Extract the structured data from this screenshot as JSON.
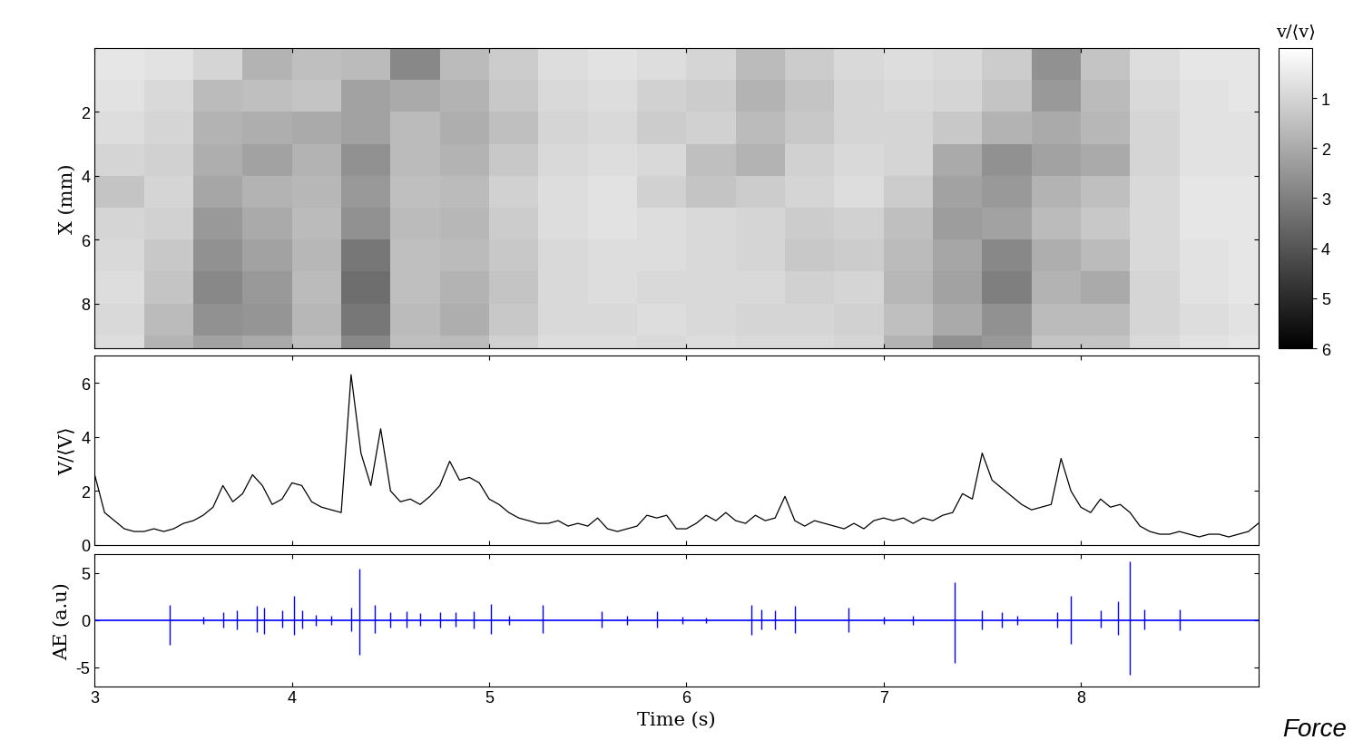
{
  "chart_data": [
    {
      "type": "heatmap",
      "y_label": "X (mm)",
      "x_edges": [
        3.0,
        3.25,
        3.5,
        3.75,
        4.0,
        4.25,
        4.5,
        4.75,
        5.0,
        5.25,
        5.5,
        5.75,
        6.0,
        6.25,
        6.5,
        6.75,
        7.0,
        7.25,
        7.5,
        7.75,
        8.0,
        8.25,
        8.5,
        8.75,
        9.0
      ],
      "y_edges": [
        0,
        1,
        2,
        3,
        4,
        5,
        6,
        7,
        8,
        9,
        9.4
      ],
      "cells": [
        [
          0.6,
          0.7,
          1.0,
          1.8,
          1.5,
          1.6,
          2.8,
          1.6,
          1.2,
          0.8,
          0.7,
          0.8,
          1.0,
          1.6,
          1.2,
          0.9,
          0.8,
          0.9,
          1.2,
          2.6,
          1.4,
          0.8,
          0.6,
          0.6
        ],
        [
          0.7,
          0.9,
          1.6,
          1.5,
          1.4,
          2.2,
          2.0,
          1.8,
          1.3,
          0.9,
          0.8,
          1.1,
          1.2,
          1.8,
          1.4,
          1.0,
          0.9,
          1.0,
          1.4,
          2.4,
          1.6,
          0.9,
          0.7,
          0.6
        ],
        [
          0.8,
          1.0,
          1.8,
          1.9,
          2.0,
          2.2,
          1.6,
          1.9,
          1.5,
          1.0,
          0.9,
          1.2,
          1.1,
          1.6,
          1.3,
          1.0,
          1.0,
          1.3,
          1.8,
          2.0,
          1.7,
          1.0,
          0.7,
          0.7
        ],
        [
          1.0,
          1.1,
          1.9,
          2.2,
          1.8,
          2.6,
          1.6,
          1.8,
          1.3,
          0.9,
          0.8,
          0.9,
          1.5,
          1.8,
          1.1,
          0.9,
          1.0,
          2.0,
          2.6,
          2.2,
          2.0,
          1.0,
          0.7,
          0.7
        ],
        [
          1.4,
          1.0,
          2.1,
          1.8,
          1.7,
          2.4,
          1.5,
          1.6,
          1.1,
          0.8,
          0.7,
          1.1,
          1.4,
          1.2,
          1.0,
          0.8,
          1.2,
          2.2,
          2.4,
          1.8,
          1.5,
          0.9,
          0.6,
          0.6
        ],
        [
          1.0,
          1.1,
          2.4,
          2.0,
          1.6,
          2.6,
          1.6,
          1.7,
          1.2,
          0.8,
          0.7,
          0.8,
          0.9,
          1.0,
          1.2,
          1.1,
          1.5,
          2.3,
          2.2,
          1.6,
          1.3,
          0.9,
          0.6,
          0.6
        ],
        [
          0.9,
          1.3,
          2.6,
          2.2,
          1.7,
          3.2,
          1.5,
          1.6,
          1.3,
          0.9,
          0.8,
          0.8,
          0.9,
          1.0,
          1.3,
          1.2,
          1.6,
          2.1,
          2.8,
          1.9,
          1.6,
          0.9,
          0.7,
          0.6
        ],
        [
          0.8,
          1.4,
          2.8,
          2.4,
          1.6,
          3.4,
          1.5,
          1.8,
          1.4,
          0.9,
          0.8,
          0.9,
          0.9,
          0.9,
          1.1,
          1.0,
          1.7,
          2.2,
          3.0,
          1.8,
          2.0,
          1.0,
          0.7,
          0.6
        ],
        [
          0.9,
          1.6,
          2.6,
          2.5,
          1.7,
          3.2,
          1.6,
          1.9,
          1.3,
          0.9,
          0.9,
          0.8,
          0.9,
          1.0,
          1.0,
          1.1,
          1.5,
          2.0,
          2.6,
          1.6,
          1.6,
          1.0,
          0.8,
          0.7
        ],
        [
          0.8,
          1.8,
          2.2,
          2.0,
          1.5,
          2.8,
          1.5,
          1.6,
          1.1,
          0.8,
          0.8,
          0.9,
          0.8,
          0.9,
          0.9,
          1.0,
          1.8,
          2.6,
          2.4,
          1.4,
          1.4,
          0.9,
          0.7,
          0.6
        ]
      ],
      "colorbar": {
        "label": "v/⟨v⟩",
        "range": [
          0,
          6
        ],
        "ticks": [
          1,
          2,
          3,
          4,
          5,
          6
        ]
      },
      "xlim": [
        3,
        8.9
      ],
      "xticks": [
        3,
        4,
        5,
        6,
        7,
        8
      ],
      "ylim": [
        9.4,
        0
      ],
      "yticks": [
        2,
        4,
        6,
        8
      ],
      "tick_labels": "y"
    },
    {
      "type": "line",
      "y_label": "V/⟨V⟩",
      "color": "#000000",
      "x": [
        3.0,
        3.05,
        3.1,
        3.15,
        3.2,
        3.25,
        3.3,
        3.35,
        3.4,
        3.45,
        3.5,
        3.55,
        3.6,
        3.65,
        3.7,
        3.75,
        3.8,
        3.85,
        3.9,
        3.95,
        4.0,
        4.05,
        4.1,
        4.15,
        4.2,
        4.25,
        4.3,
        4.35,
        4.4,
        4.45,
        4.5,
        4.55,
        4.6,
        4.65,
        4.7,
        4.75,
        4.8,
        4.85,
        4.9,
        4.95,
        5.0,
        5.05,
        5.1,
        5.15,
        5.2,
        5.25,
        5.3,
        5.35,
        5.4,
        5.45,
        5.5,
        5.55,
        5.6,
        5.65,
        5.7,
        5.75,
        5.8,
        5.85,
        5.9,
        5.95,
        6.0,
        6.05,
        6.1,
        6.15,
        6.2,
        6.25,
        6.3,
        6.35,
        6.4,
        6.45,
        6.5,
        6.55,
        6.6,
        6.65,
        6.7,
        6.75,
        6.8,
        6.85,
        6.9,
        6.95,
        7.0,
        7.05,
        7.1,
        7.15,
        7.2,
        7.25,
        7.3,
        7.35,
        7.4,
        7.45,
        7.5,
        7.55,
        7.6,
        7.65,
        7.7,
        7.75,
        7.8,
        7.85,
        7.9,
        7.95,
        8.0,
        8.05,
        8.1,
        8.15,
        8.2,
        8.25,
        8.3,
        8.35,
        8.4,
        8.45,
        8.5,
        8.55,
        8.6,
        8.65,
        8.7,
        8.75,
        8.8,
        8.85,
        8.9
      ],
      "values": [
        2.6,
        1.2,
        0.9,
        0.6,
        0.5,
        0.5,
        0.6,
        0.5,
        0.6,
        0.8,
        0.9,
        1.1,
        1.4,
        2.2,
        1.6,
        1.9,
        2.6,
        2.2,
        1.5,
        1.7,
        2.3,
        2.2,
        1.6,
        1.4,
        1.3,
        1.2,
        6.3,
        3.4,
        2.2,
        4.3,
        2.0,
        1.6,
        1.7,
        1.5,
        1.8,
        2.2,
        3.1,
        2.4,
        2.5,
        2.3,
        1.7,
        1.5,
        1.2,
        1.0,
        0.9,
        0.8,
        0.8,
        0.9,
        0.7,
        0.8,
        0.7,
        1.0,
        0.6,
        0.5,
        0.6,
        0.7,
        1.1,
        1.0,
        1.1,
        0.6,
        0.6,
        0.8,
        1.1,
        0.9,
        1.2,
        0.9,
        0.8,
        1.1,
        0.9,
        1.0,
        1.8,
        0.9,
        0.7,
        0.9,
        0.8,
        0.7,
        0.6,
        0.8,
        0.6,
        0.9,
        1.0,
        0.9,
        1.0,
        0.8,
        1.0,
        0.9,
        1.1,
        1.2,
        1.9,
        1.7,
        3.4,
        2.4,
        2.1,
        1.8,
        1.5,
        1.3,
        1.4,
        1.5,
        3.2,
        2.0,
        1.4,
        1.2,
        1.7,
        1.4,
        1.5,
        1.2,
        0.7,
        0.5,
        0.4,
        0.4,
        0.5,
        0.4,
        0.3,
        0.4,
        0.4,
        0.3,
        0.4,
        0.5,
        0.8
      ],
      "xlim": [
        3,
        8.9
      ],
      "xticks": [
        3,
        4,
        5,
        6,
        7,
        8
      ],
      "ylim": [
        0,
        7
      ],
      "yticks": [
        0,
        2,
        4,
        6
      ],
      "tick_labels": "y"
    },
    {
      "type": "spikes",
      "y_label": "AE (a.u)",
      "x_label": "Time (s)",
      "color": "#0000ff",
      "annotation": "Force",
      "baseline": 0,
      "x": [
        3.38,
        3.55,
        3.65,
        3.72,
        3.82,
        3.86,
        3.95,
        4.01,
        4.05,
        4.12,
        4.2,
        4.3,
        4.34,
        4.42,
        4.5,
        4.58,
        4.65,
        4.75,
        4.83,
        4.92,
        5.01,
        5.1,
        5.27,
        5.57,
        5.7,
        5.85,
        5.98,
        6.1,
        6.33,
        6.38,
        6.45,
        6.55,
        6.82,
        7.0,
        7.15,
        7.36,
        7.5,
        7.6,
        7.68,
        7.88,
        7.95,
        8.1,
        8.19,
        8.25,
        8.32,
        8.5
      ],
      "values": [
        1.6,
        0.4,
        0.8,
        1.0,
        1.5,
        1.3,
        1.0,
        2.6,
        1.0,
        0.6,
        0.5,
        1.3,
        5.5,
        1.6,
        0.8,
        0.9,
        0.7,
        0.8,
        0.8,
        0.9,
        1.7,
        0.5,
        1.6,
        0.9,
        0.5,
        0.9,
        0.4,
        0.3,
        1.6,
        1.1,
        1.0,
        1.5,
        1.3,
        0.4,
        0.5,
        4.0,
        1.0,
        0.8,
        0.5,
        0.8,
        2.6,
        1.0,
        2.0,
        6.2,
        1.1,
        1.1
      ],
      "lower": [
        -2.6,
        -0.4,
        -0.8,
        -1.0,
        -1.3,
        -1.5,
        -0.8,
        -1.6,
        -0.9,
        -0.6,
        -0.5,
        -1.2,
        -3.7,
        -1.4,
        -0.8,
        -0.8,
        -0.6,
        -0.8,
        -0.7,
        -0.9,
        -1.5,
        -0.5,
        -1.4,
        -0.8,
        -0.5,
        -0.8,
        -0.4,
        -0.3,
        -1.6,
        -1.0,
        -1.0,
        -1.4,
        -1.3,
        -0.4,
        -0.5,
        -4.5,
        -1.0,
        -0.8,
        -0.5,
        -0.8,
        -2.5,
        -0.8,
        -1.6,
        -5.8,
        -1.0,
        -1.1
      ],
      "xlim": [
        3,
        8.9
      ],
      "xticks": [
        3,
        4,
        5,
        6,
        7,
        8
      ],
      "ylim": [
        -7,
        7
      ],
      "yticks": [
        -5,
        0,
        5
      ]
    }
  ]
}
